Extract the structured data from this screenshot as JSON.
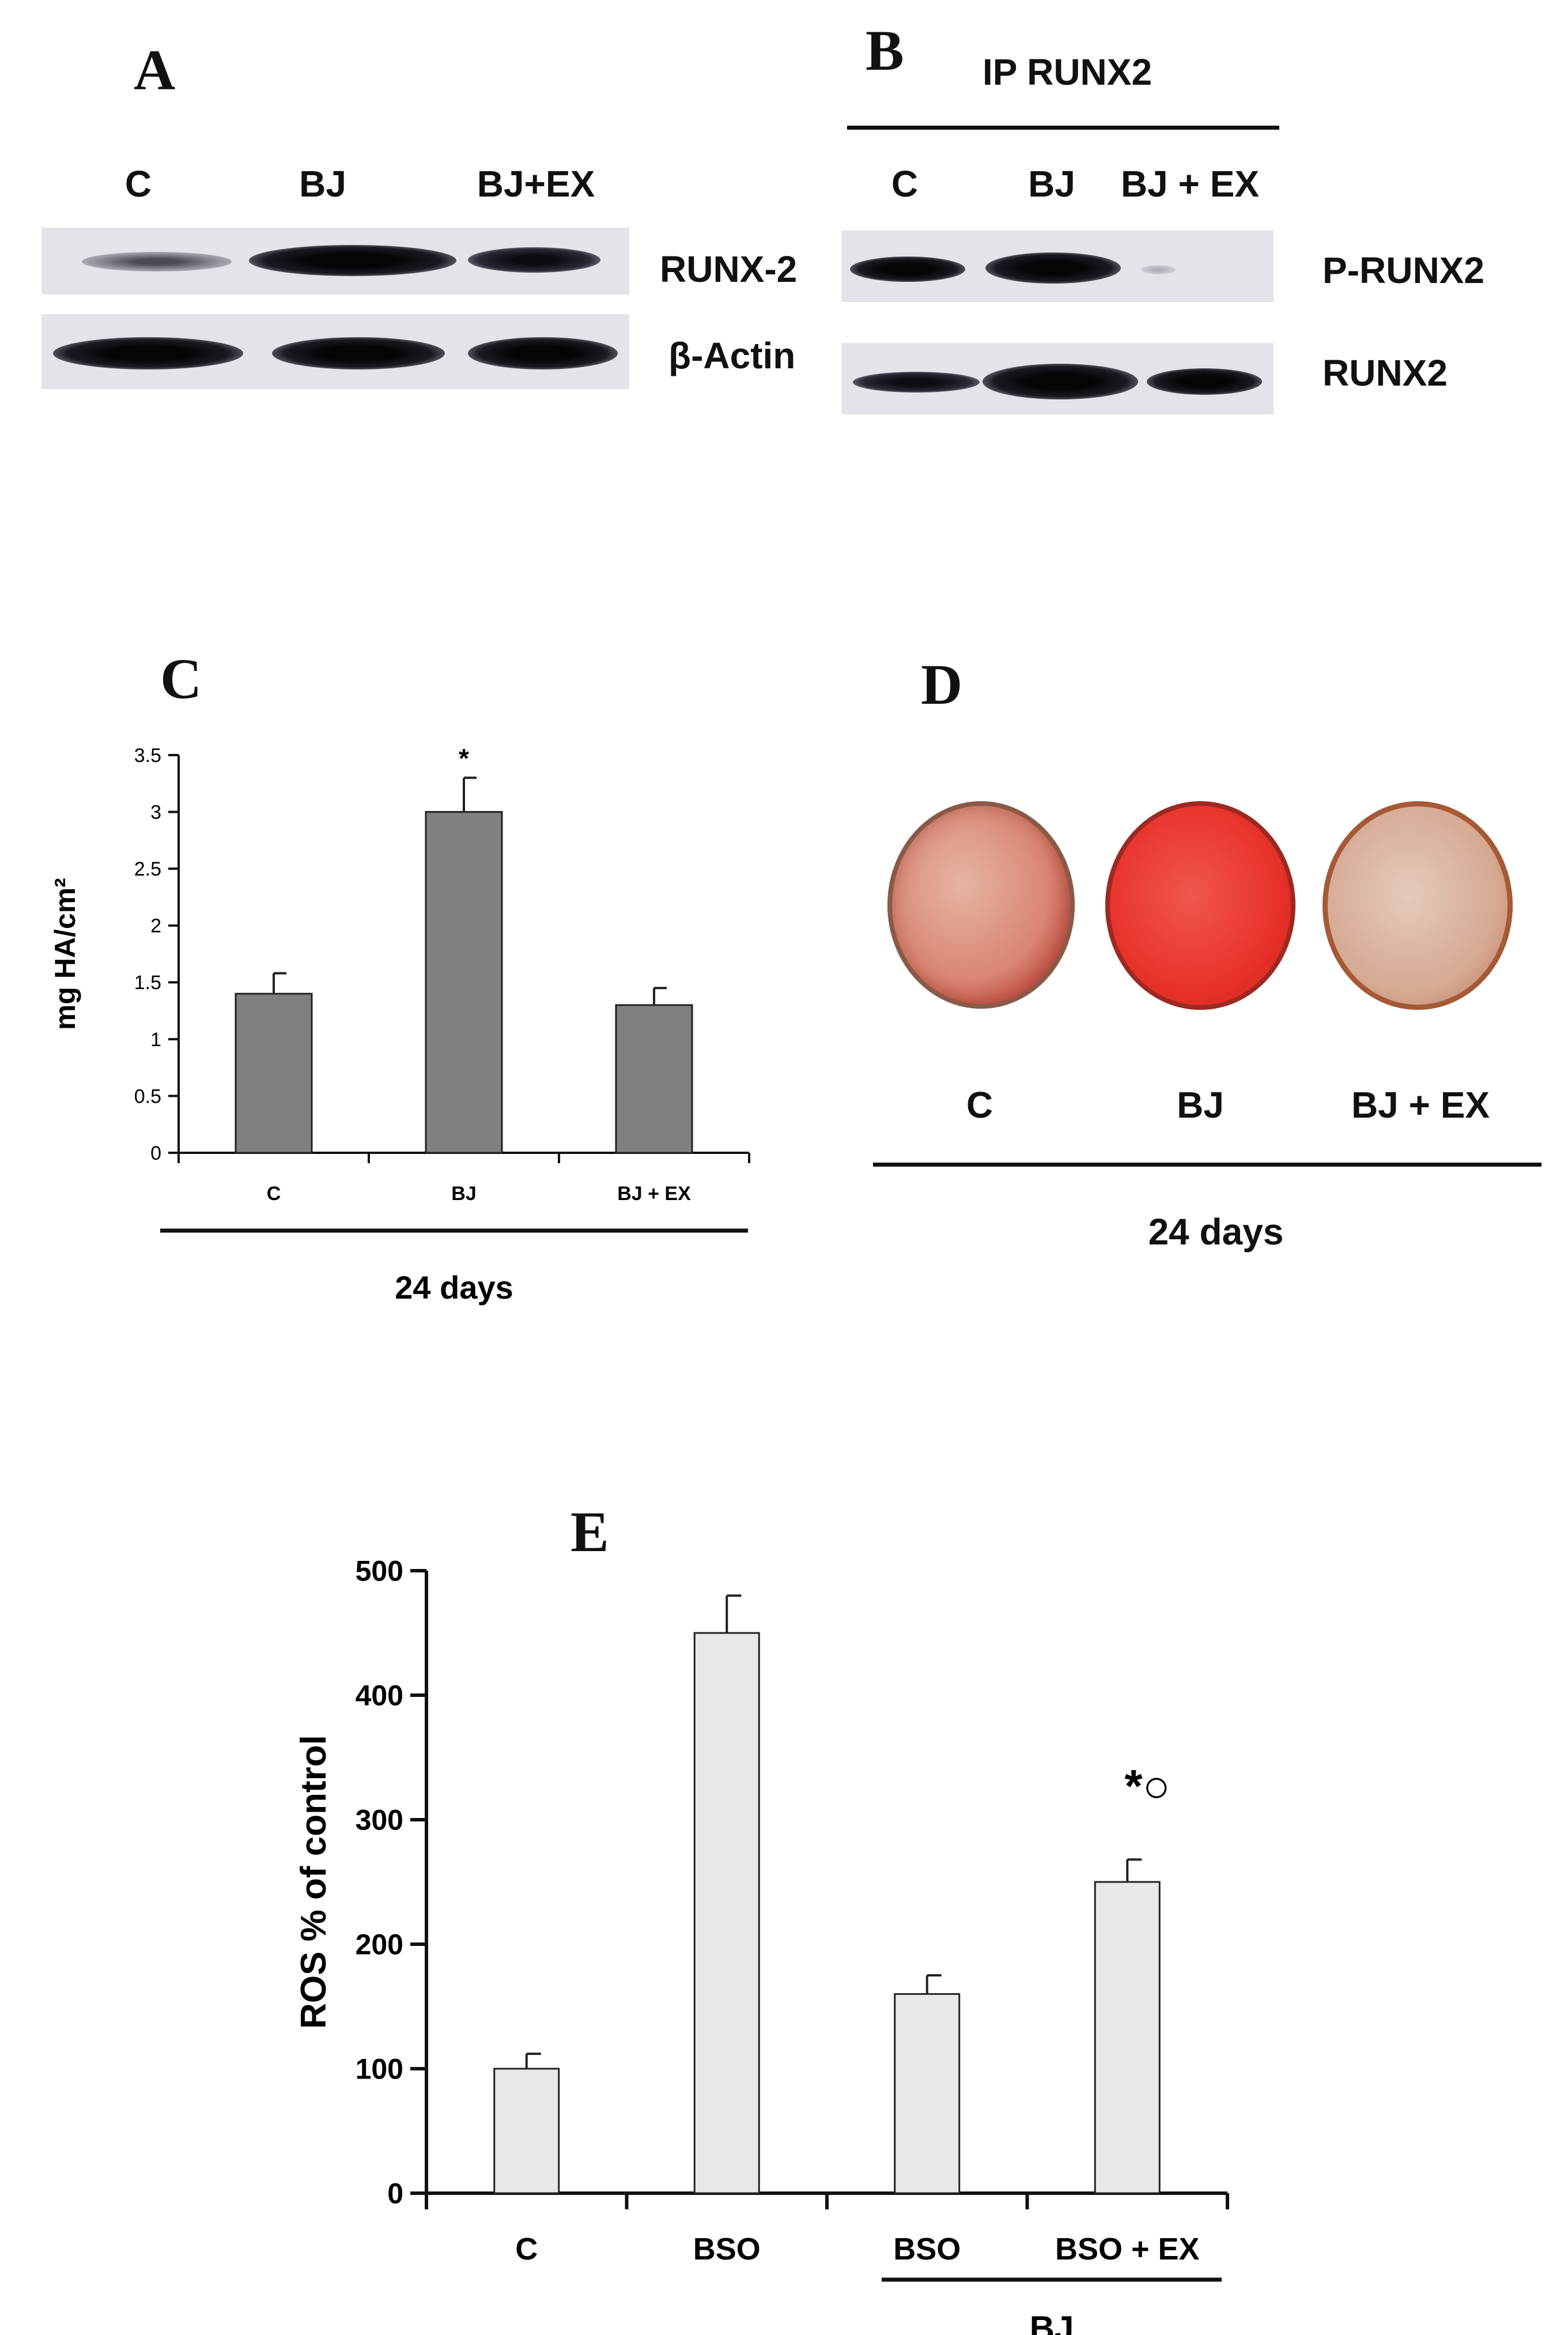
{
  "panels": {
    "A": {
      "letter": "A",
      "lanes": [
        "C",
        "BJ",
        "BJ+EX"
      ],
      "blots": [
        "RUNX-2",
        "β-Actin"
      ]
    },
    "B": {
      "letter": "B",
      "header": "IP RUNX2",
      "lanes": [
        "C",
        "BJ",
        "BJ + EX"
      ],
      "blots": [
        "P-RUNX2",
        "RUNX2"
      ]
    },
    "D": {
      "letter": "D",
      "wells": [
        "C",
        "BJ",
        "BJ + EX"
      ],
      "group_label": "24 days"
    }
  },
  "colors": {
    "bar_c": "#808080",
    "bar_e": "#e8e8e8",
    "dish_c": "#d98572",
    "dish_bj": "#e8312a",
    "dish_bjex": "#d6a992"
  },
  "chart_data": [
    {
      "panel": "C",
      "type": "bar",
      "title": "C",
      "categories": [
        "C",
        "BJ",
        "BJ + EX"
      ],
      "values": [
        1.4,
        3.0,
        1.3
      ],
      "errors": [
        0.18,
        0.3,
        0.15
      ],
      "ylabel": "mg HA/cm²",
      "xlabel": "",
      "group_label": "24 days",
      "significance": [
        "",
        "*",
        ""
      ],
      "ylim": [
        0,
        3.5
      ],
      "yticks": [
        0,
        0.5,
        1,
        1.5,
        2,
        2.5,
        3,
        3.5
      ],
      "ytick_labels": [
        "0",
        "0.5",
        "1",
        "1.5",
        "2",
        "2.5",
        "3",
        "3.5"
      ]
    },
    {
      "panel": "E",
      "type": "bar",
      "title": "E",
      "categories": [
        "C",
        "BSO",
        "BSO",
        "BSO + EX"
      ],
      "values": [
        100,
        450,
        160,
        250
      ],
      "errors": [
        12,
        30,
        15,
        18
      ],
      "ylabel": "ROS % of control",
      "xlabel": "",
      "group_label": "BJ",
      "significance": [
        "",
        "",
        "",
        "*○"
      ],
      "ylim": [
        0,
        500
      ],
      "yticks": [
        0,
        100,
        200,
        300,
        400,
        500
      ],
      "ytick_labels": [
        "0",
        "100",
        "200",
        "300",
        "400",
        "500"
      ]
    }
  ]
}
